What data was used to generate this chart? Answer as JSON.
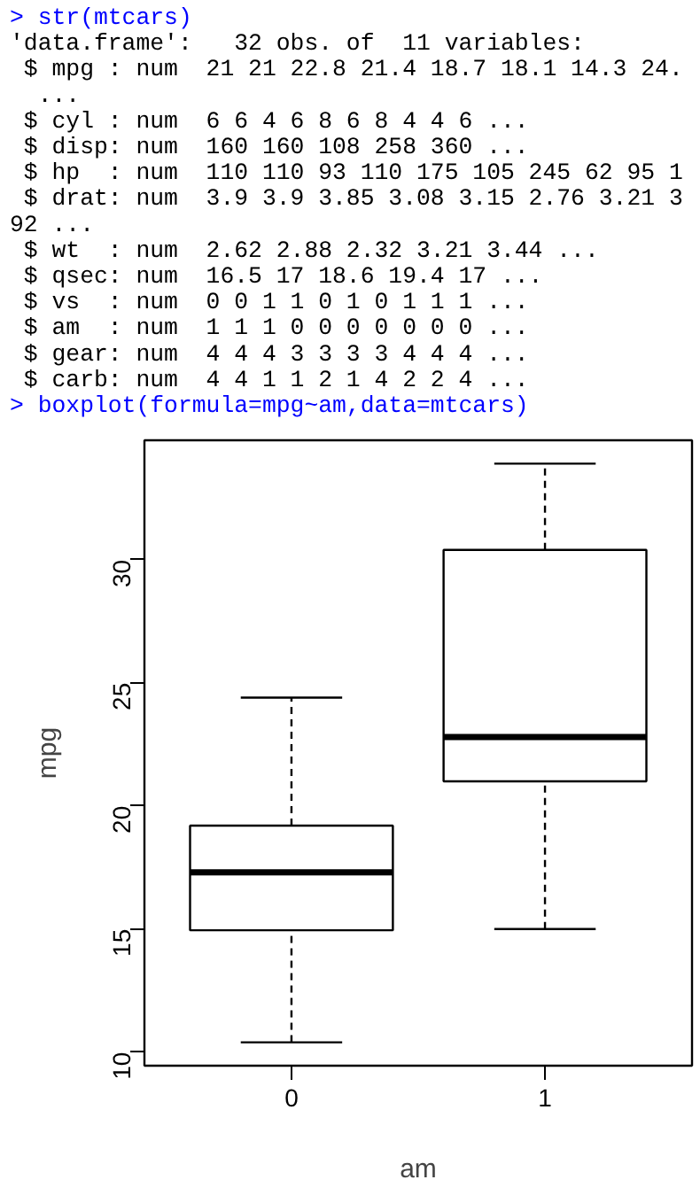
{
  "chart_data": {
    "type": "box",
    "annotations": [
      "> str(mtcars)",
      "'data.frame':   32 obs. of  11 variables:",
      " $ mpg : num  21 21 22.8 21.4 18.7 18.1 14.3 24.",
      "  ...",
      " $ cyl : num  6 6 4 6 8 6 8 4 4 6 ...",
      " $ disp: num  160 160 108 258 360 ...",
      " $ hp  : num  110 110 93 110 175 105 245 62 95 1",
      " $ drat: num  3.9 3.9 3.85 3.08 3.15 2.76 3.21 3",
      "92 ...",
      " $ wt  : num  2.62 2.88 2.32 3.21 3.44 ...",
      " $ qsec: num  16.5 17 18.6 19.4 17 ...",
      " $ vs  : num  0 0 1 1 0 1 0 1 1 1 ...",
      " $ am  : num  1 1 1 0 0 0 0 0 0 0 ...",
      " $ gear: num  4 4 4 3 3 3 3 4 4 4 ...",
      " $ carb: num  4 4 1 1 2 1 4 2 2 4 ...",
      "> boxplot(formula=mpg~am,data=mtcars)"
    ],
    "categories": [
      "0",
      "1"
    ],
    "xlabel": "am",
    "ylabel": "mpg",
    "ylim": [
      9.45,
      34.85
    ],
    "yticks": [
      10,
      15,
      20,
      25,
      30
    ],
    "boxes": [
      {
        "low": 10.4,
        "q1": 14.95,
        "median": 17.3,
        "q3": 19.2,
        "high": 24.4
      },
      {
        "low": 15.0,
        "q1": 21.0,
        "median": 22.8,
        "q3": 30.4,
        "high": 33.9
      }
    ]
  }
}
